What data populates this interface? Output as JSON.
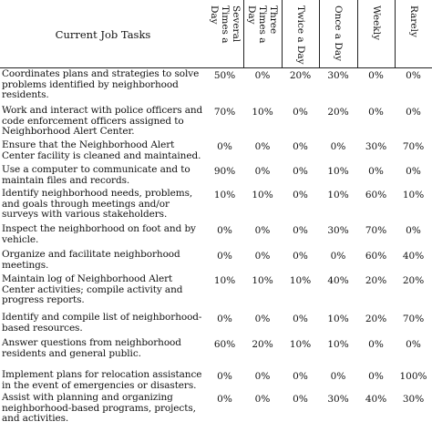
{
  "table": {
    "task_header": "Current Job Tasks",
    "columns": [
      "Several Times a Day",
      "Three Times a Day",
      "Twice a Day",
      "Once a Day",
      "Weekly",
      "Rarely"
    ],
    "rows": [
      {
        "task": "Coordinates plans and strategies to solve problems identified by neighborhood residents.",
        "values": [
          "50%",
          "0%",
          "20%",
          "30%",
          "0%",
          "0%"
        ]
      },
      {
        "task": "Work and interact with police officers and code enforcement officers assigned to Neighborhood Alert Center.",
        "values": [
          "70%",
          "10%",
          "0%",
          "20%",
          "0%",
          "0%"
        ]
      },
      {
        "task": "Ensure that the Neighborhood Alert Center facility is cleaned and maintained.",
        "values": [
          "0%",
          "0%",
          "0%",
          "0%",
          "30%",
          "70%"
        ]
      },
      {
        "task": "Use a computer to communicate and to maintain files and records.",
        "values": [
          "90%",
          "0%",
          "0%",
          "10%",
          "0%",
          "0%"
        ]
      },
      {
        "task": "Identify neighborhood needs, problems, and goals through meetings and/or surveys with various stakeholders.",
        "values": [
          "10%",
          "10%",
          "0%",
          "10%",
          "60%",
          "10%"
        ]
      },
      {
        "task": "Inspect the neighborhood on foot and by vehicle.",
        "values": [
          "0%",
          "0%",
          "0%",
          "30%",
          "70%",
          "0%"
        ]
      },
      {
        "task": "Organize and facilitate neighborhood meetings.",
        "values": [
          "0%",
          "0%",
          "0%",
          "0%",
          "60%",
          "40%"
        ]
      },
      {
        "task": "Maintain log of Neighborhood Alert Center activities; compile activity and progress reports.",
        "values": [
          "10%",
          "10%",
          "10%",
          "40%",
          "20%",
          "20%"
        ]
      },
      {
        "task": "Identify and compile list of neighborhood-based resources.",
        "values": [
          "0%",
          "0%",
          "0%",
          "10%",
          "20%",
          "70%"
        ]
      },
      {
        "task": "Answer questions from neighborhood residents and general public.",
        "values": [
          "60%",
          "20%",
          "10%",
          "10%",
          "0%",
          "0%"
        ]
      },
      {
        "task": "Implement plans for relocation assistance in the event of emergencies or disasters.",
        "values": [
          "0%",
          "0%",
          "0%",
          "0%",
          "0%",
          "100%"
        ]
      },
      {
        "task": "Assist with planning and organizing neighborhood-based programs, projects, and activities.",
        "values": [
          "0%",
          "0%",
          "0%",
          "30%",
          "40%",
          "30%"
        ]
      }
    ]
  }
}
